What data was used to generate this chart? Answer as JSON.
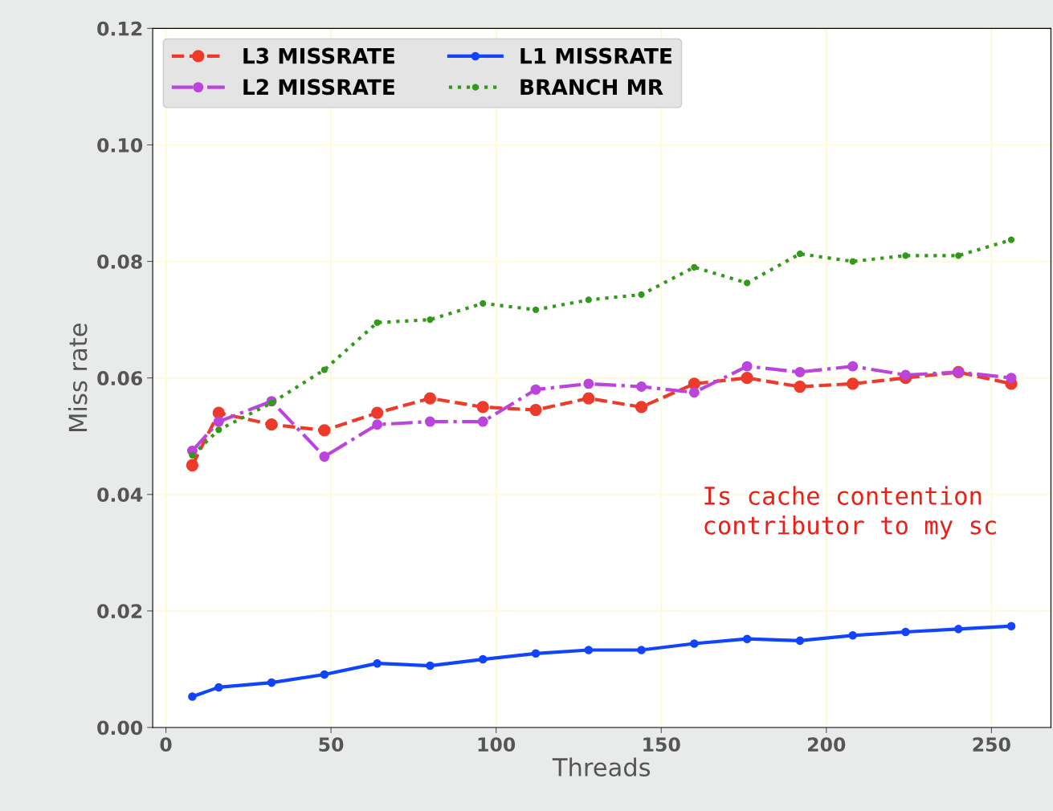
{
  "chart_data": {
    "type": "line",
    "xlabel": "Threads",
    "ylabel": "Miss rate",
    "x": [
      8,
      16,
      32,
      48,
      64,
      80,
      96,
      112,
      128,
      144,
      160,
      176,
      192,
      208,
      224,
      240,
      256
    ],
    "series": [
      {
        "name": "L3 MISSRATE",
        "color": "#ee3a2a",
        "line_style": "dashed",
        "values": [
          0.045,
          0.054,
          0.052,
          0.051,
          0.054,
          0.0565,
          0.055,
          0.0545,
          0.0565,
          0.055,
          0.059,
          0.06,
          0.0585,
          0.059,
          0.06,
          0.061,
          0.059
        ]
      },
      {
        "name": "L2 MISSRATE",
        "color": "#bb44dd",
        "line_style": "dashdot",
        "values": [
          0.0475,
          0.0525,
          0.056,
          0.0465,
          0.052,
          0.0525,
          0.0525,
          0.058,
          0.059,
          0.0585,
          0.0575,
          0.062,
          0.061,
          0.062,
          0.0605,
          0.061,
          0.06
        ]
      },
      {
        "name": "L1 MISSRATE",
        "color": "#1144ff",
        "line_style": "solid",
        "values": [
          0.0053,
          0.0069,
          0.0077,
          0.0091,
          0.011,
          0.0106,
          0.0117,
          0.0127,
          0.0133,
          0.0133,
          0.0144,
          0.0152,
          0.0149,
          0.0158,
          0.0164,
          0.0169,
          0.0174
        ]
      },
      {
        "name": "BRANCH MR",
        "color": "#33991a",
        "line_style": "dotted",
        "values": [
          0.0467,
          0.0511,
          0.0557,
          0.0614,
          0.0695,
          0.07,
          0.0728,
          0.0717,
          0.0734,
          0.0743,
          0.079,
          0.0763,
          0.0813,
          0.08,
          0.081,
          0.081,
          0.0837
        ]
      }
    ],
    "marker": "circle",
    "xlim": [
      -4,
      268
    ],
    "xticks": [
      0,
      50,
      100,
      150,
      200,
      250
    ],
    "ylim": [
      0,
      0.12
    ],
    "yticks": [
      {
        "value": 0,
        "label": "0.00"
      },
      {
        "value": 0.02,
        "label": "0.02"
      },
      {
        "value": 0.04,
        "label": "0.04"
      },
      {
        "value": 0.06,
        "label": "0.06"
      },
      {
        "value": 0.08,
        "label": "0.08"
      },
      {
        "value": 0.1,
        "label": "0.10"
      },
      {
        "value": 0.12,
        "label": "0.12"
      }
    ],
    "grid": true,
    "legend": "top left",
    "annotations": [
      "Is cache contention\ncontributor to my sc"
    ]
  }
}
